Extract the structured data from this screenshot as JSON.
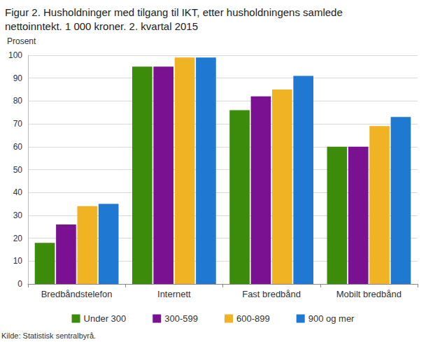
{
  "chart_data": {
    "type": "bar",
    "title": "Figur 2. Husholdninger med tilgang til IKT, etter husholdningens samlede nettoinntekt. 1 000 kroner. 2. kvartal 2015",
    "ylabel": "Prosent",
    "annotations": [
      "Kilde: Statistisk sentralbyrå."
    ],
    "categories": [
      "Bredbåndstelefon",
      "Internett",
      "Fast bredbånd",
      "Mobilt bredbånd"
    ],
    "series": [
      {
        "name": "Under 300",
        "color": "#3d8b0b",
        "values": [
          18,
          95,
          76,
          60
        ]
      },
      {
        "name": "300-599",
        "color": "#7a1191",
        "values": [
          26,
          95,
          82,
          60
        ]
      },
      {
        "name": "600-899",
        "color": "#f0b323",
        "values": [
          34,
          99,
          85,
          69
        ]
      },
      {
        "name": "900 og mer",
        "color": "#1f78d1",
        "values": [
          35,
          99,
          91,
          73
        ]
      }
    ],
    "ylim": [
      0,
      100
    ],
    "yticks": [
      0,
      10,
      20,
      30,
      40,
      50,
      60,
      70,
      80,
      90,
      100
    ],
    "grid": true,
    "legend": "bottom"
  }
}
